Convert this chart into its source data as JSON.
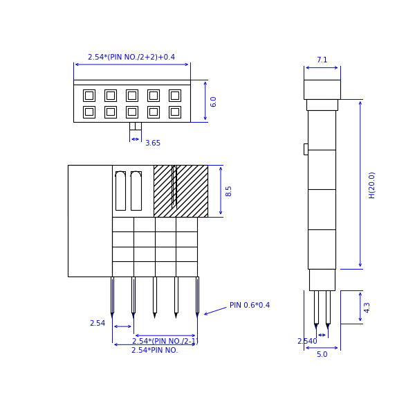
{
  "bg_color": "#ffffff",
  "lc": "#000000",
  "dc": "#0000cd",
  "lw": 0.8,
  "dlw": 0.7,
  "top_view": {
    "label_width": "2.54*(PIN NO./2+2)+0.4",
    "label_height": "6.0",
    "label_stub": "3.65",
    "pins_cols": 5,
    "pins_rows": 2
  },
  "front_view": {
    "label_85": "8.5",
    "label_254": "2.54",
    "label_span1": "2.54*(PIN NO./2-1)",
    "label_span2": "2.54*PIN NO.",
    "label_pin": "PIN 0.6*0.4"
  },
  "side_view": {
    "label_width": "7.1",
    "label_height": "H(20.0)",
    "label_43": "4.3",
    "label_2540": "2.540",
    "label_50": "5.0"
  }
}
